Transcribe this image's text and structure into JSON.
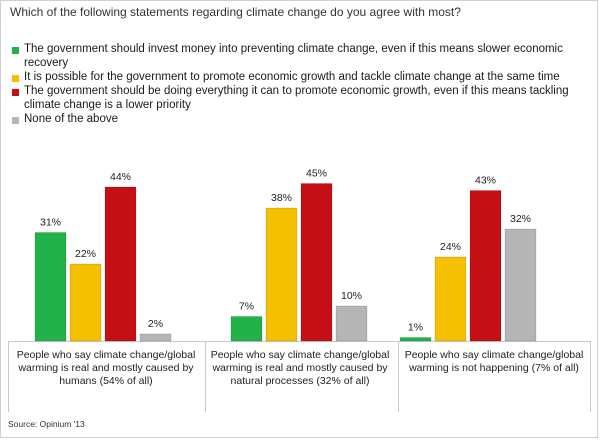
{
  "chart_data": {
    "type": "bar",
    "title": "Which of the following statements regarding climate change do you agree with most?",
    "categories": [
      [
        "People who say climate change/global",
        "warming is real and mostly caused by",
        "humans (54% of all)"
      ],
      [
        "People who say climate change/global",
        "warming is real and mostly caused by",
        "natural processes (32% of all)"
      ],
      [
        "People who say climate change/global",
        "warming is not happening  (7% of all)"
      ]
    ],
    "series": [
      {
        "name": "The government should invest money into preventing climate change, even if  this means slower economic recovery",
        "color": "#21b24a",
        "values": [
          31,
          7,
          1
        ]
      },
      {
        "name": "It is possible for the government to promote economic growth and tackle climate change at the same time",
        "color": "#f5c000",
        "values": [
          22,
          38,
          24
        ]
      },
      {
        "name": "The government should be doing everything it can to promote economic growth, even if this means tackling climate change is a lower priority",
        "color": "#c40f14",
        "values": [
          44,
          45,
          43
        ]
      },
      {
        "name": "None of the above",
        "color": "#b5b5b5",
        "values": [
          2,
          10,
          32
        ]
      }
    ],
    "value_suffix": "%",
    "ylim": [
      0,
      50
    ],
    "grid": false,
    "legend_position": "top-left"
  },
  "source": "Source: Opinium '13"
}
